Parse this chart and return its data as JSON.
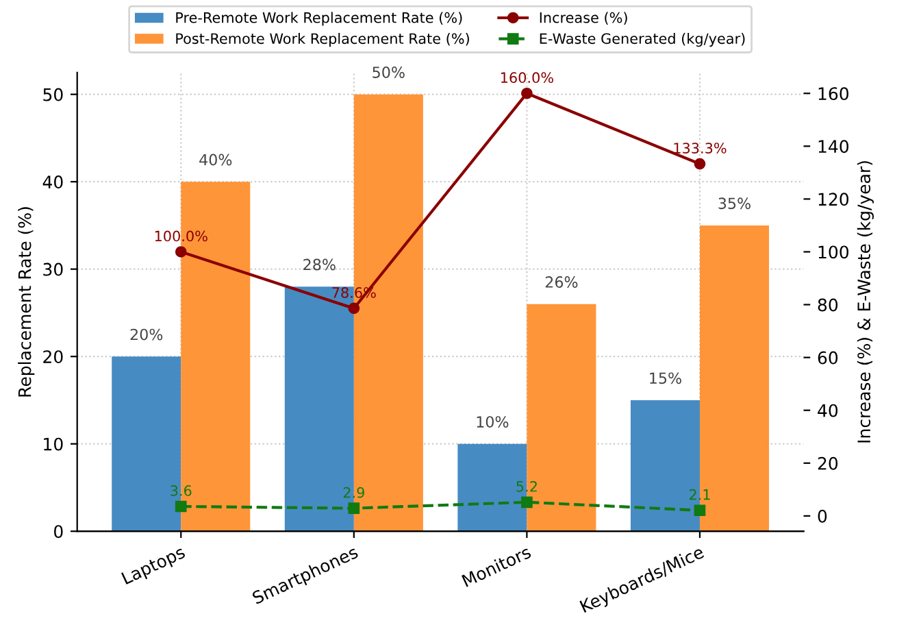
{
  "chart_data": {
    "type": "bar",
    "categories": [
      "Laptops",
      "Smartphones",
      "Monitors",
      "Keyboards/Mice"
    ],
    "ylabel": "Replacement Rate (%)",
    "y2label": "Increase (%) & E-Waste (kg/year)",
    "ylim": [
      0,
      52.5
    ],
    "yticks": [
      0,
      10,
      20,
      30,
      40,
      50
    ],
    "y2lim": [
      -5.8,
      167.9
    ],
    "y2ticks": [
      0,
      20,
      40,
      60,
      80,
      100,
      120,
      140,
      160
    ],
    "grid": true,
    "legend": "top",
    "series": [
      {
        "name": "Pre-Remote Work Replacement Rate (%)",
        "color": "#3d85c0",
        "values": [
          20,
          28,
          10,
          15
        ],
        "value_labels": [
          "20%",
          "28%",
          "10%",
          "15%"
        ]
      },
      {
        "name": "Post-Remote Work Replacement Rate (%)",
        "color": "#ff8f2e",
        "values": [
          40,
          50,
          26,
          35
        ],
        "value_labels": [
          "40%",
          "50%",
          "26%",
          "35%"
        ]
      },
      {
        "name": "Increase (%)",
        "type": "line",
        "axis": "y2",
        "color": "#8b0000",
        "marker": "circle",
        "line_style": "solid",
        "values": [
          100.0,
          78.6,
          160.0,
          133.3
        ],
        "value_labels": [
          "100.0%",
          "78.6%",
          "160.0%",
          "133.3%"
        ]
      },
      {
        "name": "E-Waste Generated (kg/year)",
        "type": "line",
        "axis": "y2",
        "color": "#117a11",
        "marker": "square",
        "line_style": "dashed",
        "values": [
          3.6,
          2.9,
          5.2,
          2.1
        ],
        "value_labels": [
          "3.6",
          "2.9",
          "5.2",
          "2.1"
        ]
      }
    ]
  }
}
